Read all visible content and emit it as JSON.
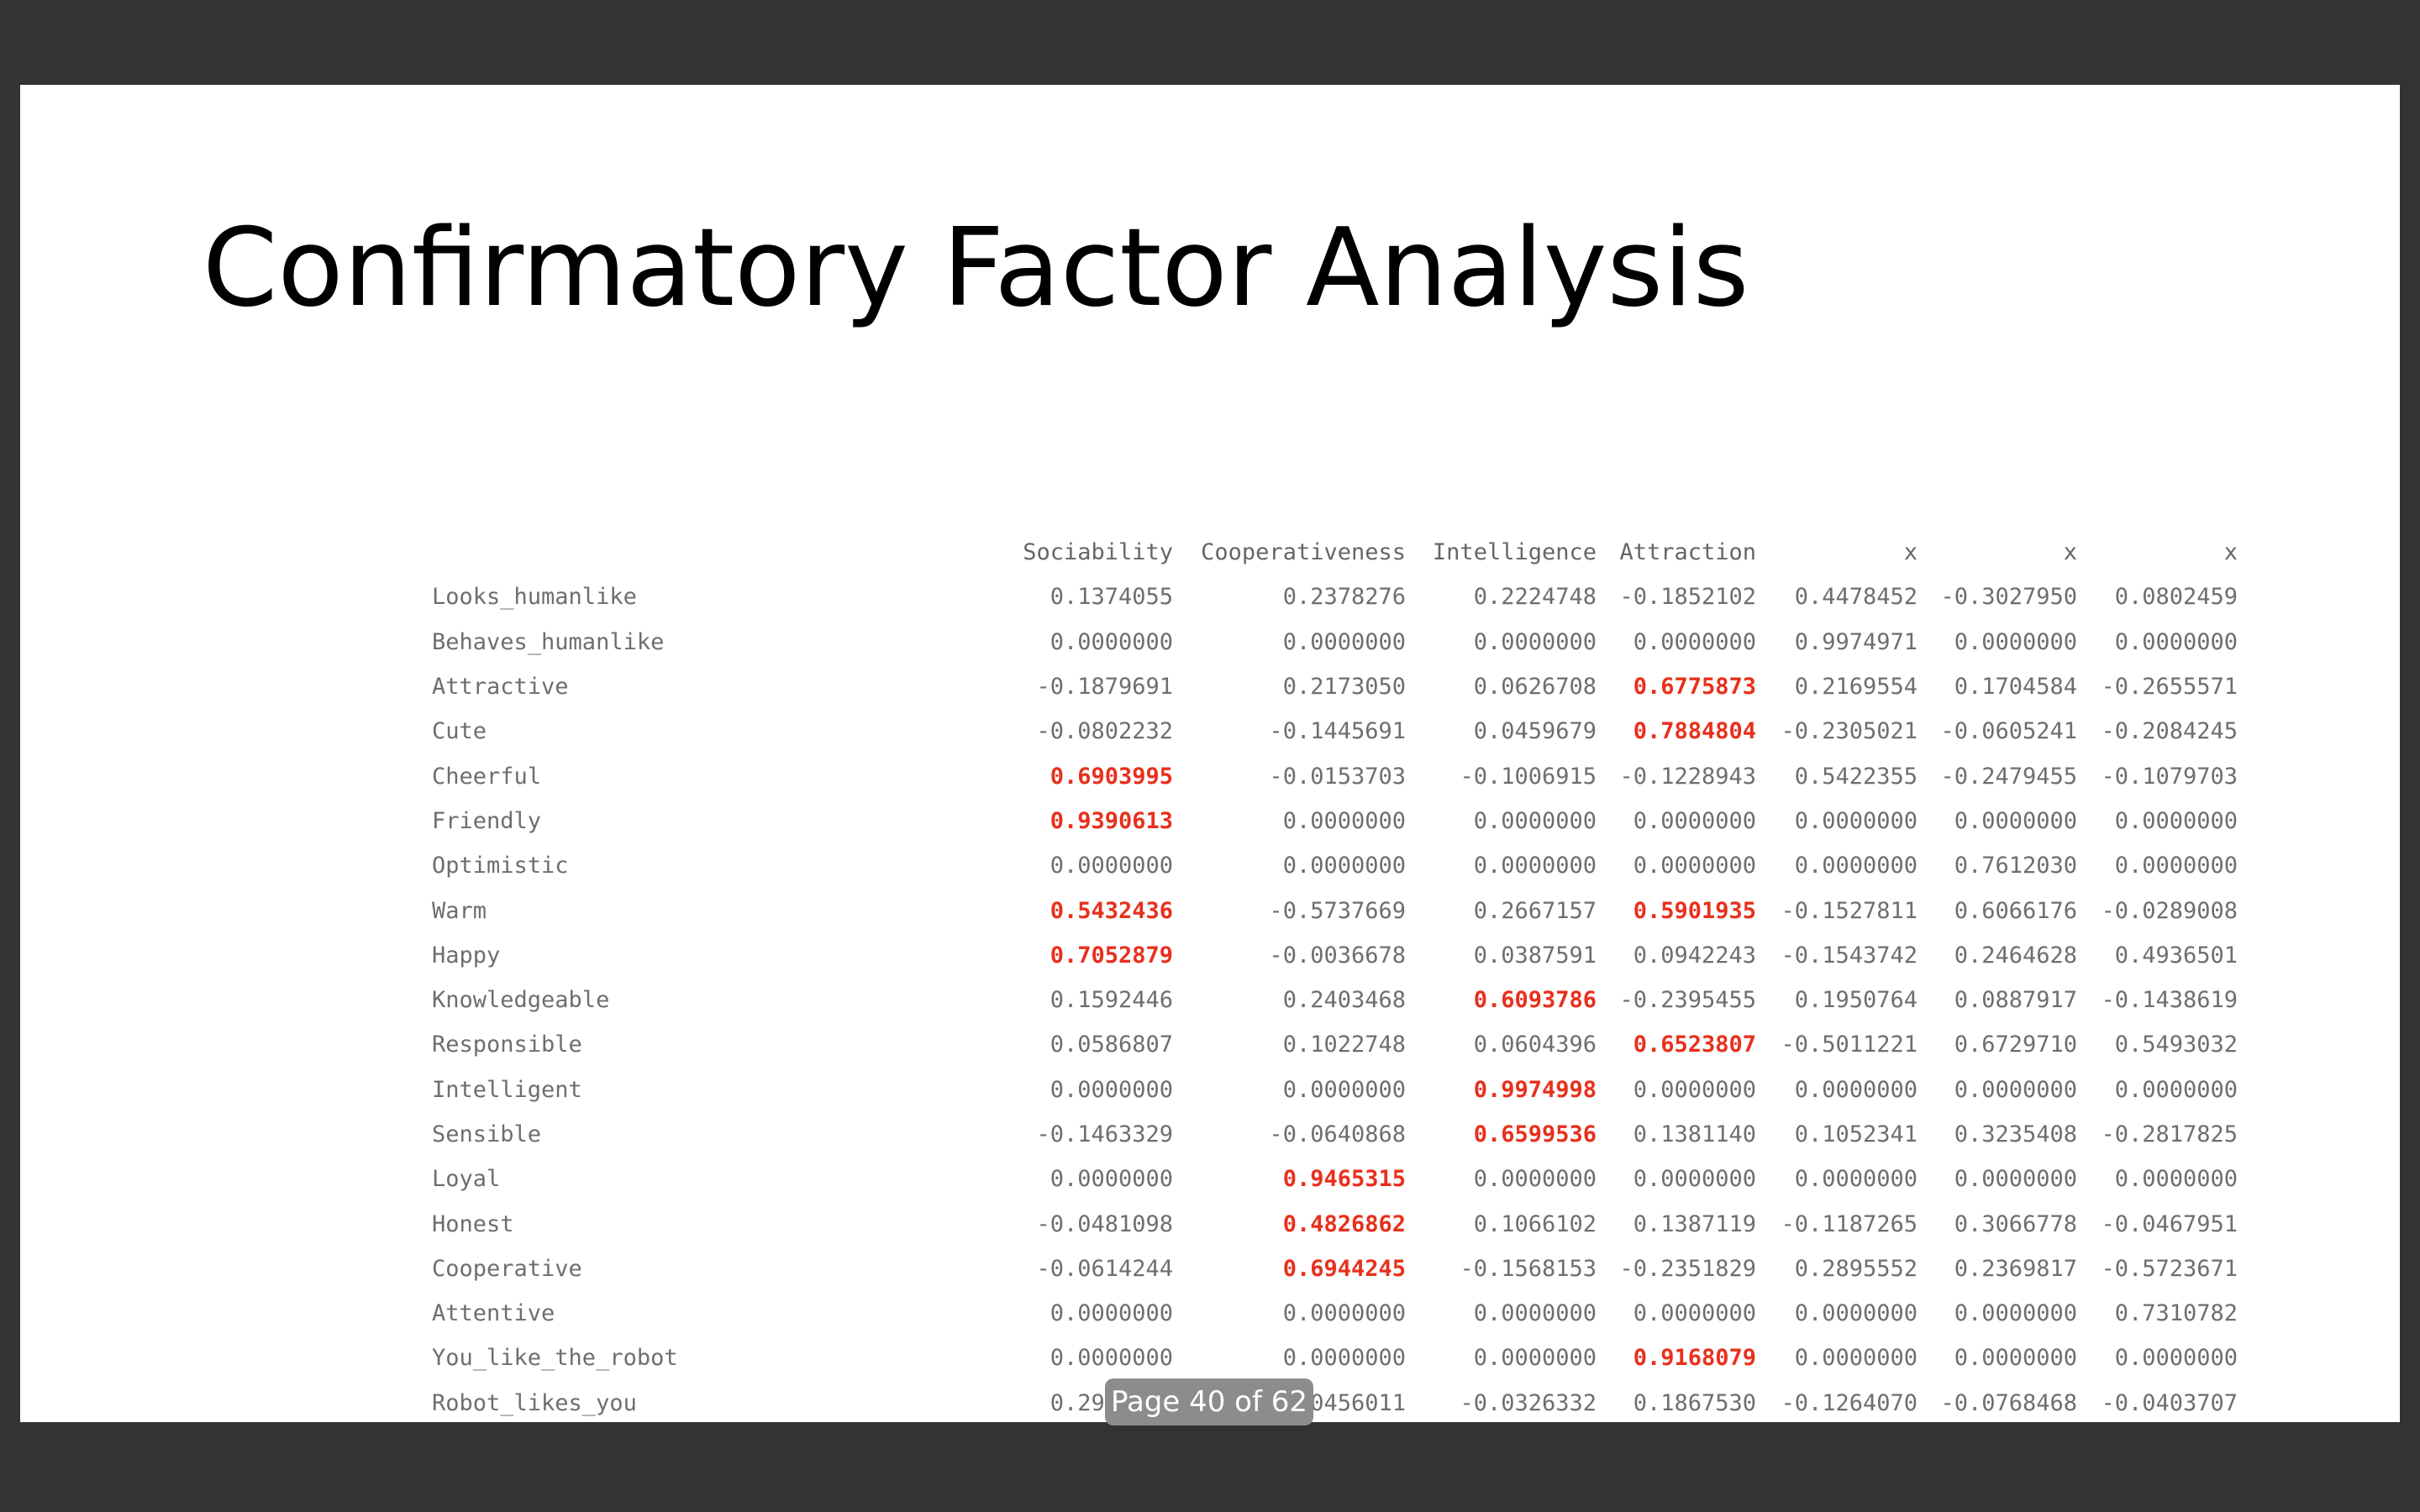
{
  "slide": {
    "title": "Confirmatory Factor Analysis"
  },
  "table": {
    "columns": [
      "Sociability",
      "Cooperativeness",
      "Intelligence",
      "Attraction",
      "x",
      "x",
      "x"
    ],
    "rows": [
      {
        "label": "Looks_humanlike",
        "values": [
          "0.1374055",
          "0.2378276",
          "0.2224748",
          "-0.1852102",
          "0.4478452",
          "-0.3027950",
          "0.0802459"
        ],
        "highlight": []
      },
      {
        "label": "Behaves_humanlike",
        "values": [
          "0.0000000",
          "0.0000000",
          "0.0000000",
          "0.0000000",
          "0.9974971",
          "0.0000000",
          "0.0000000"
        ],
        "highlight": []
      },
      {
        "label": "Attractive",
        "values": [
          "-0.1879691",
          "0.2173050",
          "0.0626708",
          "0.6775873",
          "0.2169554",
          "0.1704584",
          "-0.2655571"
        ],
        "highlight": [
          3
        ]
      },
      {
        "label": "Cute",
        "values": [
          "-0.0802232",
          "-0.1445691",
          "0.0459679",
          "0.7884804",
          "-0.2305021",
          "-0.0605241",
          "-0.2084245"
        ],
        "highlight": [
          3
        ]
      },
      {
        "label": "Cheerful",
        "values": [
          "0.6903995",
          "-0.0153703",
          "-0.1006915",
          "-0.1228943",
          "0.5422355",
          "-0.2479455",
          "-0.1079703"
        ],
        "highlight": [
          0
        ]
      },
      {
        "label": "Friendly",
        "values": [
          "0.9390613",
          "0.0000000",
          "0.0000000",
          "0.0000000",
          "0.0000000",
          "0.0000000",
          "0.0000000"
        ],
        "highlight": [
          0
        ]
      },
      {
        "label": "Optimistic",
        "values": [
          "0.0000000",
          "0.0000000",
          "0.0000000",
          "0.0000000",
          "0.0000000",
          "0.7612030",
          "0.0000000"
        ],
        "highlight": []
      },
      {
        "label": "Warm",
        "values": [
          "0.5432436",
          "-0.5737669",
          "0.2667157",
          "0.5901935",
          "-0.1527811",
          "0.6066176",
          "-0.0289008"
        ],
        "highlight": [
          0,
          3
        ]
      },
      {
        "label": "Happy",
        "values": [
          "0.7052879",
          "-0.0036678",
          "0.0387591",
          "0.0942243",
          "-0.1543742",
          "0.2464628",
          "0.4936501"
        ],
        "highlight": [
          0
        ]
      },
      {
        "label": "Knowledgeable",
        "values": [
          "0.1592446",
          "0.2403468",
          "0.6093786",
          "-0.2395455",
          "0.1950764",
          "0.0887917",
          "-0.1438619"
        ],
        "highlight": [
          2
        ]
      },
      {
        "label": "Responsible",
        "values": [
          "0.0586807",
          "0.1022748",
          "0.0604396",
          "0.6523807",
          "-0.5011221",
          "0.6729710",
          "0.5493032"
        ],
        "highlight": [
          3
        ]
      },
      {
        "label": "Intelligent",
        "values": [
          "0.0000000",
          "0.0000000",
          "0.9974998",
          "0.0000000",
          "0.0000000",
          "0.0000000",
          "0.0000000"
        ],
        "highlight": [
          2
        ]
      },
      {
        "label": "Sensible",
        "values": [
          "-0.1463329",
          "-0.0640868",
          "0.6599536",
          "0.1381140",
          "0.1052341",
          "0.3235408",
          "-0.2817825"
        ],
        "highlight": [
          2
        ]
      },
      {
        "label": "Loyal",
        "values": [
          "0.0000000",
          "0.9465315",
          "0.0000000",
          "0.0000000",
          "0.0000000",
          "0.0000000",
          "0.0000000"
        ],
        "highlight": [
          1
        ]
      },
      {
        "label": "Honest",
        "values": [
          "-0.0481098",
          "0.4826862",
          "0.1066102",
          "0.1387119",
          "-0.1187265",
          "0.3066778",
          "-0.0467951"
        ],
        "highlight": [
          1
        ]
      },
      {
        "label": "Cooperative",
        "values": [
          "-0.0614244",
          "0.6944245",
          "-0.1568153",
          "-0.2351829",
          "0.2895552",
          "0.2369817",
          "-0.5723671"
        ],
        "highlight": [
          1
        ]
      },
      {
        "label": "Attentive",
        "values": [
          "0.0000000",
          "0.0000000",
          "0.0000000",
          "0.0000000",
          "0.0000000",
          "0.0000000",
          "0.7310782"
        ],
        "highlight": []
      },
      {
        "label": "You_like_the_robot",
        "values": [
          "0.0000000",
          "0.0000000",
          "0.0000000",
          "0.9168079",
          "0.0000000",
          "0.0000000",
          "0.0000000"
        ],
        "highlight": [
          3
        ]
      },
      {
        "label": "Robot_likes_you",
        "values": [
          "0.2996796",
          "-0.0456011",
          "-0.0326332",
          "0.1867530",
          "-0.1264070",
          "-0.0768468",
          "-0.0403707"
        ],
        "highlight": []
      }
    ],
    "highlight_color": "#e8301c"
  },
  "pager": {
    "label": "Page 40 of 62"
  }
}
